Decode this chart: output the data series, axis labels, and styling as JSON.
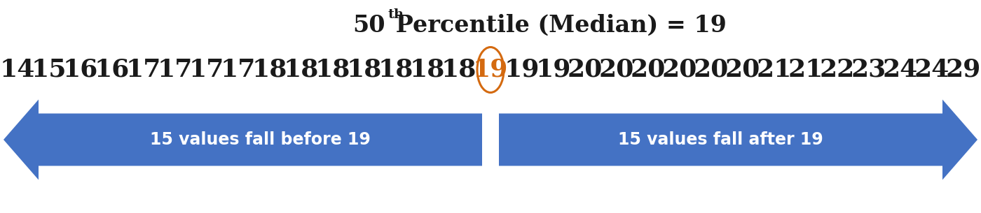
{
  "title_base": "50",
  "title_sup": "th",
  "title_rest": " Percentile (Median) = 19",
  "numbers": [
    "14",
    "15",
    "16",
    "16",
    "17",
    "17",
    "17",
    "17",
    "18",
    "18",
    "18",
    "18",
    "18",
    "18",
    "18",
    "19",
    "19",
    "19",
    "20",
    "20",
    "20",
    "20",
    "20",
    "20",
    "21",
    "21",
    "22",
    "23",
    "24",
    "24",
    "29"
  ],
  "median_index": 15,
  "median_value": "19",
  "left_label": "15 values fall before 19",
  "right_label": "15 values fall after 19",
  "arrow_color": "#4472C4",
  "median_circle_color": "#D46A10",
  "median_text_color": "#D46A10",
  "background_color": "#FFFFFF",
  "text_color": "#1a1a1a",
  "number_fontsize": 26,
  "title_fontsize": 24,
  "arrow_fontsize": 17
}
